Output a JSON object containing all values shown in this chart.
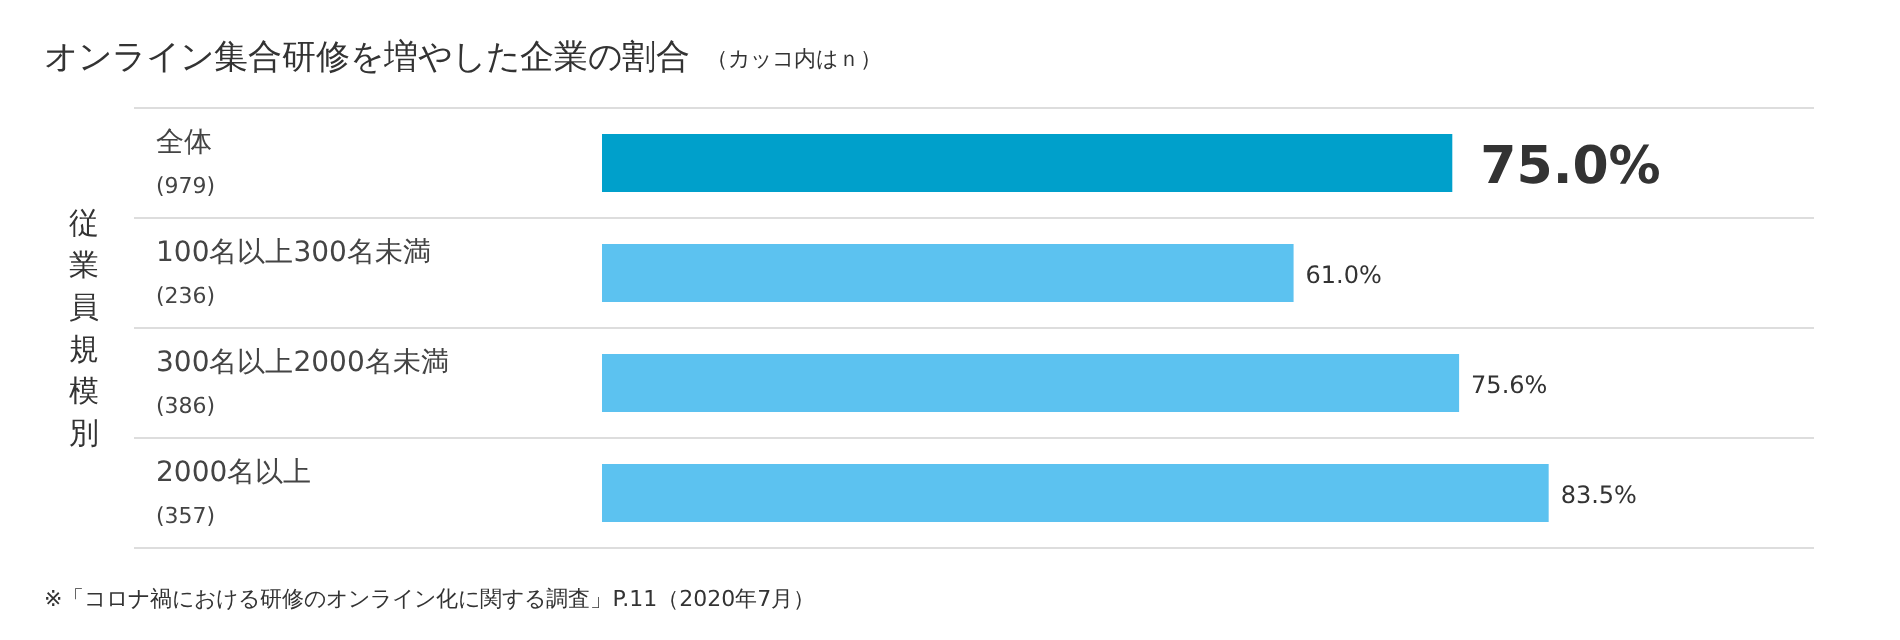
{
  "chart_data": {
    "type": "bar",
    "orientation": "horizontal",
    "title": "オンライン集合研修を増やした企業の割合",
    "subtitle": "（カッコ内はｎ）",
    "ylabel": "従業員規模別",
    "categories": [
      "全体\n(979)",
      "100名以上300名未満\n(236)",
      "300名以上2000名未満\n(386)",
      "2000名以上\n(357)"
    ],
    "values": [
      75.0,
      61.0,
      75.6,
      83.5
    ],
    "colors": [
      "#00a0cb",
      "#5cc2f0",
      "#5cc2f0",
      "#5cc2f0"
    ],
    "value_labels": [
      "75.0%",
      "61.0%",
      "75.6%",
      "83.5%"
    ],
    "annotations": [
      "※「コロナ禍における研修のオンライン化に関する調査」P.11（2020年7月）"
    ]
  }
}
